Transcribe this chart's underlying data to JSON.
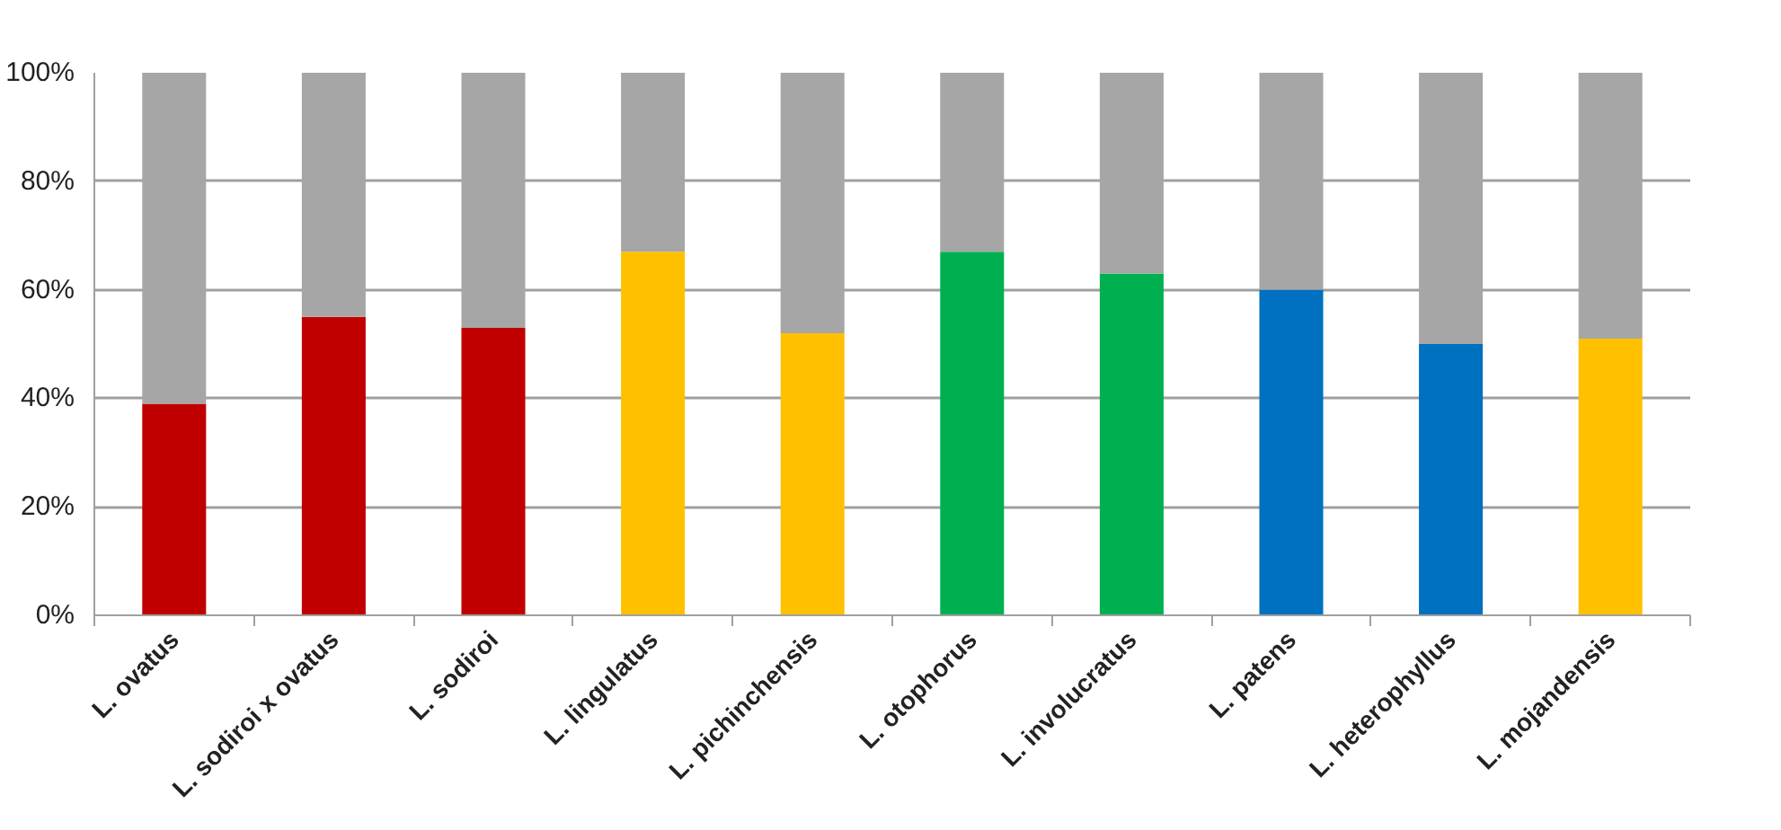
{
  "chart_data": {
    "type": "bar",
    "stacked": true,
    "categories": [
      "L. ovatus",
      "L. sodiroi x ovatus",
      "L. sodiroi",
      "L. lingulatus",
      "L. pichinchensis",
      "L. otophorus",
      "L. involucratus",
      "L. patens",
      "L. heterophyllus",
      "L. mojandensis"
    ],
    "series": [
      {
        "colors": [
          "#c00000",
          "#c00000",
          "#c00000",
          "#ffc000",
          "#ffc000",
          "#00b050",
          "#00b050",
          "#0070c0",
          "#0070c0",
          "#ffc000"
        ],
        "values": [
          39,
          55,
          53,
          67,
          52,
          67,
          63,
          60,
          50,
          51
        ]
      },
      {
        "color": "#a6a6a6",
        "values": [
          61,
          45,
          47,
          33,
          48,
          33,
          37,
          40,
          50,
          49
        ]
      }
    ],
    "ylim": [
      0,
      100
    ],
    "yticks": [
      {
        "value": 0,
        "label": "0%"
      },
      {
        "value": 20,
        "label": "20%"
      },
      {
        "value": 40,
        "label": "40%"
      },
      {
        "value": 60,
        "label": "60%"
      },
      {
        "value": 80,
        "label": "80%"
      },
      {
        "value": 100,
        "label": "100%"
      }
    ],
    "grid": "y"
  }
}
